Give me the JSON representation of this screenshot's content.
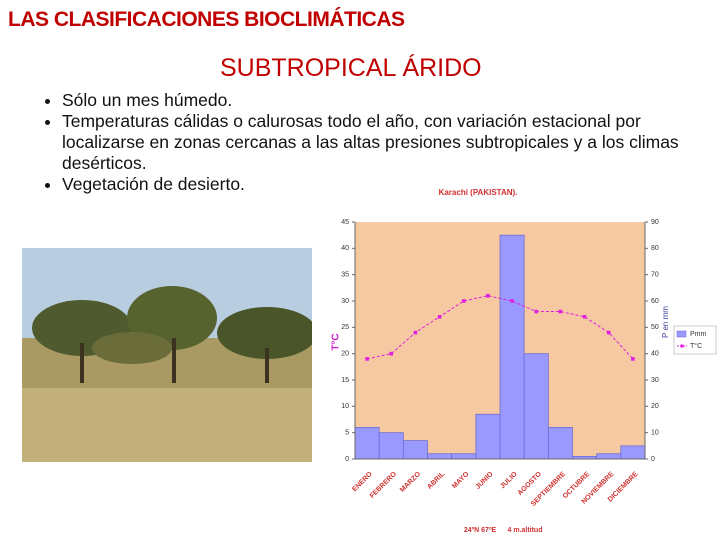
{
  "slide": {
    "title": "LAS CLASIFICACIONES BIOCLIMÁTICAS",
    "subtitle": "SUBTROPICAL ÁRIDO",
    "bullets": [
      "Sólo un mes húmedo.",
      "Temperaturas  cálidas o calurosas todo el año, con variación estacional por localizarse en zonas cercanas a las altas presiones subtropicales y a los climas desérticos.",
      "Vegetación de desierto."
    ]
  },
  "chart_data": {
    "type": "climograph",
    "title": "Karachi (PAKISTAN).",
    "y_label": "T°C",
    "y2_label": "P en mm",
    "categories": [
      "ENERO",
      "FEBRERO",
      "MARZO",
      "ABRIL",
      "MAYO",
      "JUNIO",
      "JULIO",
      "AGOSTO",
      "SEPTIEMBRE",
      "OCTUBRE",
      "NOVIEMBRE",
      "DICIEMBRE"
    ],
    "series": [
      {
        "name": "Pmm",
        "color": "#9999ff",
        "axis": "y2",
        "values": [
          12,
          10,
          7,
          2,
          2,
          17,
          85,
          40,
          12,
          1,
          2,
          5
        ]
      },
      {
        "name": "T°C",
        "color": "#e020e0",
        "values": [
          19,
          20,
          24,
          27,
          30,
          31,
          30,
          28,
          28,
          27,
          24,
          19
        ]
      }
    ],
    "ylim": [
      0,
      45
    ],
    "yticks": [
      0,
      5,
      10,
      15,
      20,
      25,
      30,
      35,
      40,
      45
    ],
    "y2lim": [
      0,
      90
    ],
    "y2ticks": [
      0,
      10,
      20,
      30,
      40,
      50,
      60,
      70,
      80,
      90
    ],
    "annotations": [
      "24ºN 67ºE",
      "4 m.altitud"
    ]
  }
}
